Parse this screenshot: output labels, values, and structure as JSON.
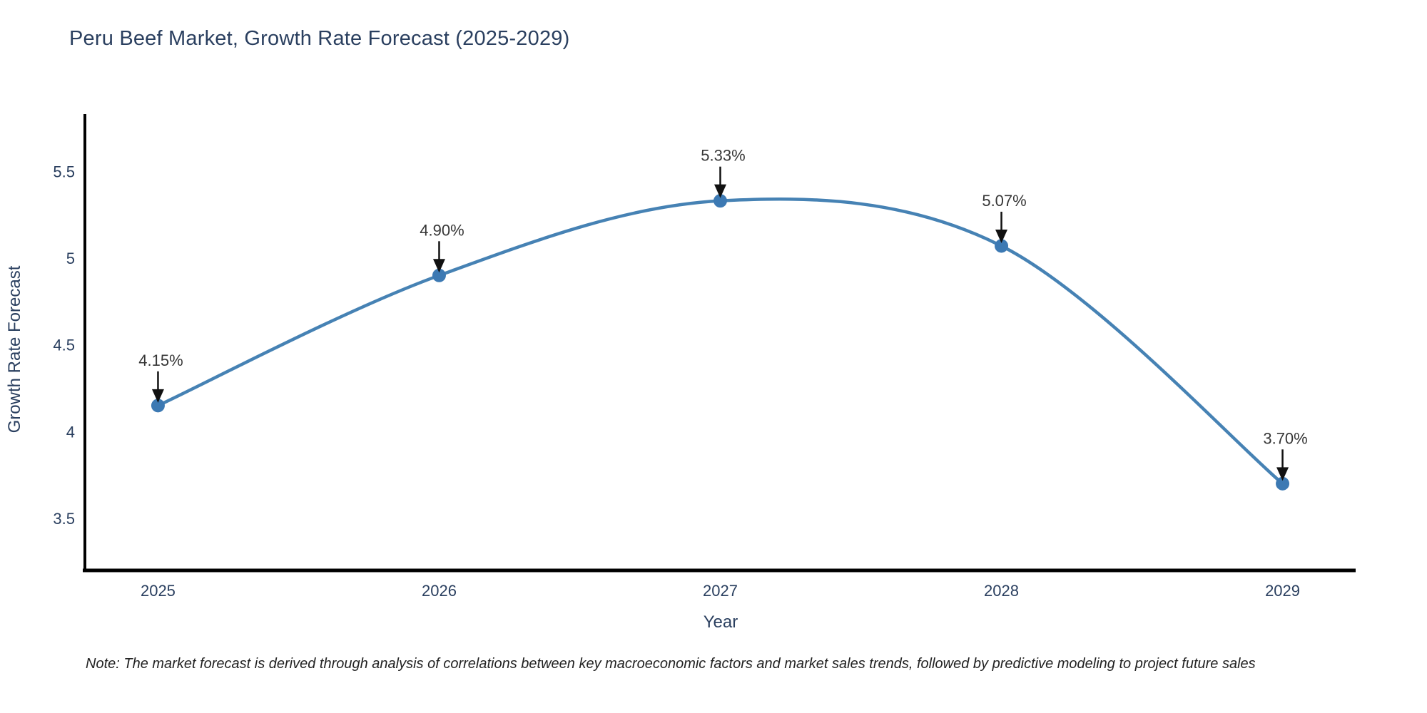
{
  "header": {
    "title": "Peru Beef Market, Growth Rate Forecast (2025-2029)"
  },
  "footnote": {
    "text": "Note: The market forecast is derived through analysis of correlations between key macroeconomic factors and market sales trends, followed by predictive modeling to project future sales"
  },
  "chart_data": {
    "type": "line",
    "title": "Peru Beef Market, Growth Rate Forecast (2025-2029)",
    "xlabel": "Year",
    "ylabel": "Growth Rate Forecast",
    "x": [
      2025,
      2026,
      2027,
      2028,
      2029
    ],
    "y": [
      4.15,
      4.9,
      5.33,
      5.07,
      3.7
    ],
    "point_labels": [
      "4.15%",
      "4.90%",
      "5.33%",
      "5.07%",
      "3.70%"
    ],
    "x_tick_labels": [
      "2025",
      "2026",
      "2027",
      "2028",
      "2029"
    ],
    "y_tick_labels": [
      "5.5",
      "5",
      "4.5",
      "4",
      "3.5"
    ],
    "y_tick_values": [
      5.5,
      5.0,
      4.5,
      4.0,
      3.5
    ],
    "xlim": [
      2024.74,
      2029.26
    ],
    "ylim": [
      3.2,
      5.83
    ],
    "grid": false,
    "legend": "none",
    "line_shape": "spline",
    "colors": {
      "line": "#4682b4",
      "marker": "#3c79b3",
      "axis": "#000000",
      "arrow": "#111111",
      "tick_text": "#2a3f5f",
      "title_text": "#2a3f5f",
      "annotation_text": "#363636",
      "background": "#ffffff"
    }
  }
}
